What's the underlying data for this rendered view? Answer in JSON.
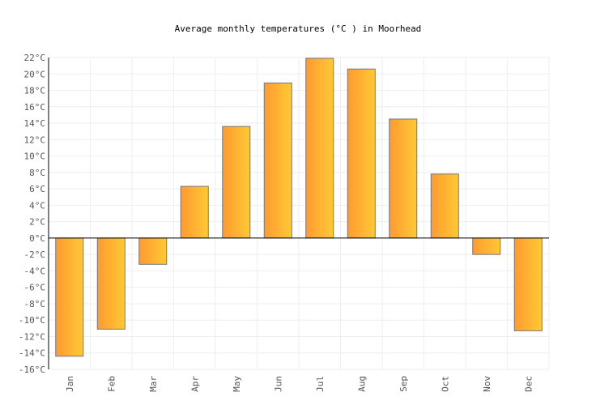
{
  "chart_data": {
    "type": "bar",
    "title": "Average monthly temperatures (°C ) in Moorhead",
    "categories": [
      "Jan",
      "Feb",
      "Mar",
      "Apr",
      "May",
      "Jun",
      "Jul",
      "Aug",
      "Sep",
      "Oct",
      "Nov",
      "Dec"
    ],
    "values": [
      -14.4,
      -11.1,
      -3.2,
      6.3,
      13.6,
      18.9,
      21.9,
      20.6,
      14.5,
      7.8,
      -2.0,
      -11.3
    ],
    "ylim": [
      -16,
      22
    ],
    "ytick_step": 2,
    "yticks": [
      "22°C",
      "20°C",
      "18°C",
      "16°C",
      "14°C",
      "12°C",
      "10°C",
      "8°C",
      "6°C",
      "4°C",
      "2°C",
      "0°C",
      "-2°C",
      "-4°C",
      "-6°C",
      "-8°C",
      "-10°C",
      "-12°C",
      "-14°C",
      "-16°C"
    ],
    "xlabel": "",
    "ylabel": "",
    "grid": true,
    "colors": {
      "bar_start": "#ff9a30",
      "bar_end": "#ffc935",
      "bar_border": "#777777",
      "grid": "#eeeeee"
    }
  }
}
